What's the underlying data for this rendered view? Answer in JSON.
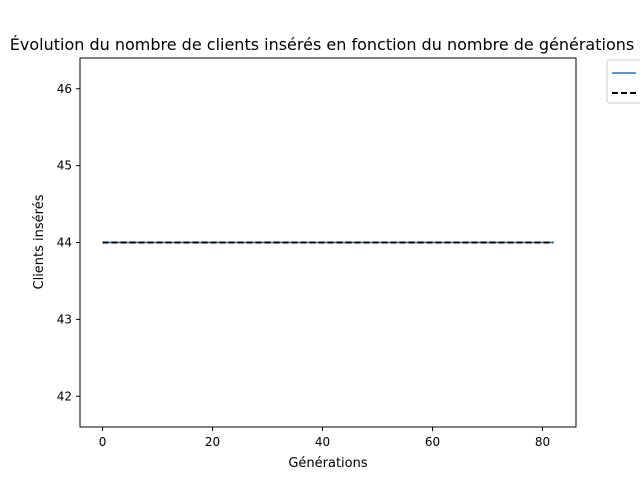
{
  "chart_data": {
    "type": "line",
    "title": "Évolution du nombre de clients insérés en fonction du nombre de générations",
    "xlabel": "Générations",
    "ylabel": "Clients insérés",
    "xlim": [
      -4.1,
      86.1
    ],
    "ylim": [
      41.6,
      46.4
    ],
    "xticks": [
      0,
      20,
      40,
      60,
      80
    ],
    "yticks": [
      42,
      43,
      44,
      45,
      46
    ],
    "grid": false,
    "legend_position": "outside-top-right",
    "series": [
      {
        "style": "solid",
        "color": "#1f77b4",
        "x": [
          0,
          82
        ],
        "y": [
          44,
          44
        ]
      },
      {
        "style": "dashed",
        "color": "#000000",
        "x": [
          0,
          82
        ],
        "y": [
          44,
          44
        ]
      }
    ]
  }
}
